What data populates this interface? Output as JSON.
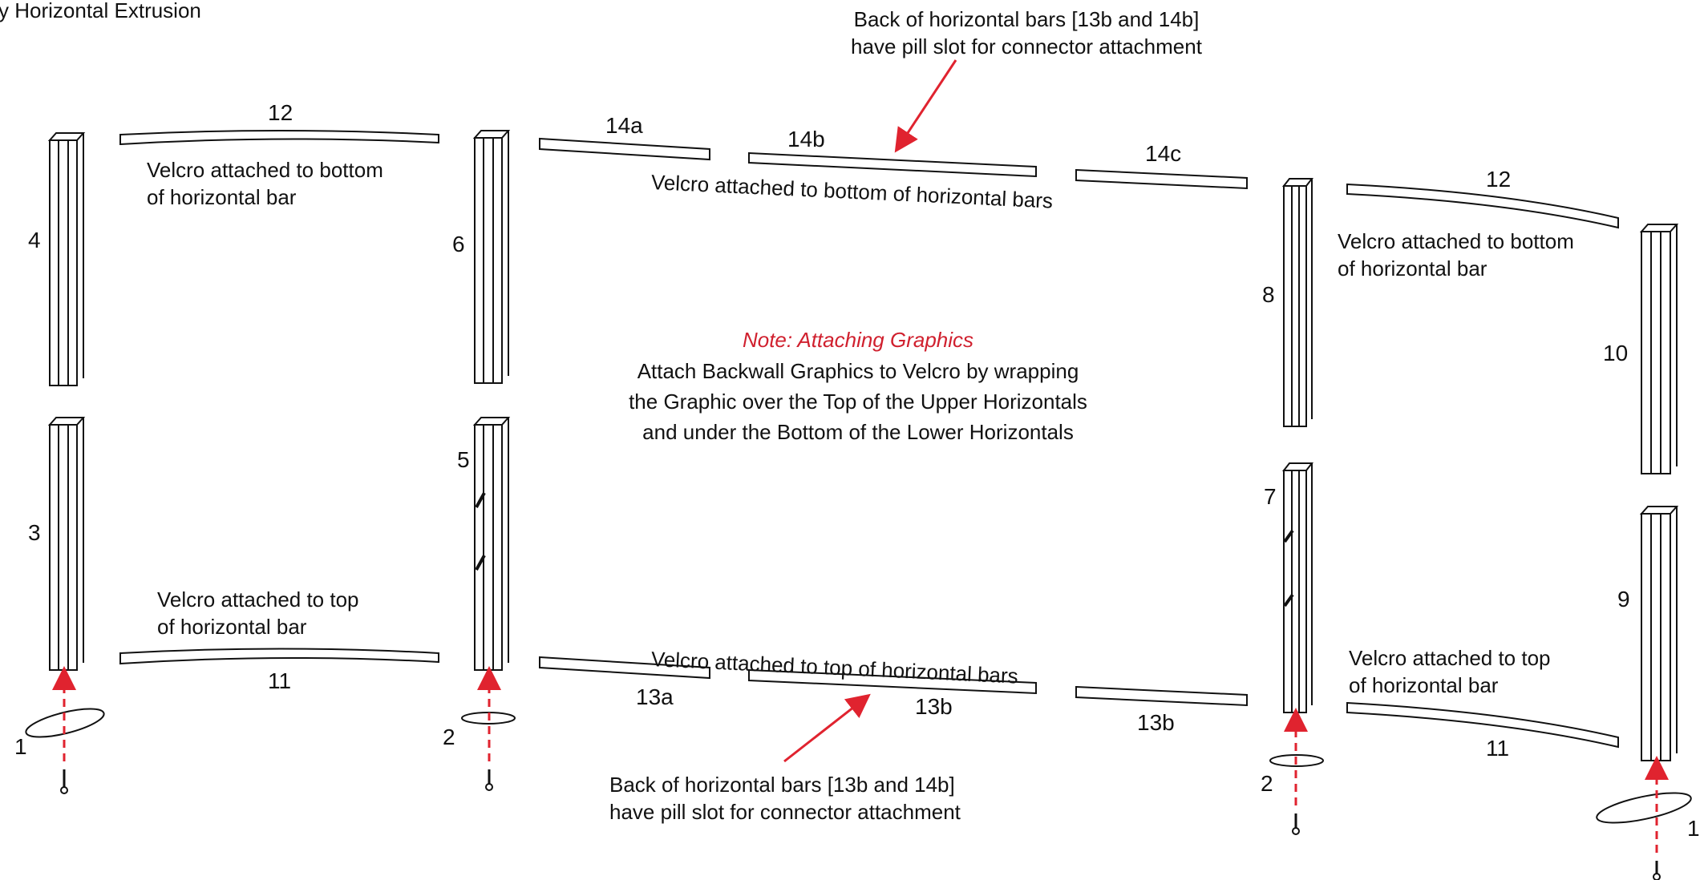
{
  "header": {
    "title": "y Horizontal Extrusion"
  },
  "callouts": {
    "top_pill_line1": "Back of horizontal bars [13b and 14b]",
    "top_pill_line2": "have pill slot for connector attachment",
    "bottom_pill_line1": "Back of horizontal bars [13b and 14b]",
    "bottom_pill_line2": "have pill slot for connector attachment",
    "velcro_bottom_left_1": "Velcro attached to bottom",
    "velcro_bottom_left_2": "of horizontal bar",
    "velcro_bottom_right_1": "Velcro attached to bottom",
    "velcro_bottom_right_2": "of horizontal bar",
    "velcro_top_left_1": "Velcro attached to top",
    "velcro_top_left_2": "of horizontal bar",
    "velcro_top_right_1": "Velcro attached to top",
    "velcro_top_right_2": "of horizontal bar",
    "velcro_bottom_center": "Velcro attached to bottom of horizontal bars",
    "velcro_top_center": "Velcro attached to top of horizontal bars"
  },
  "note": {
    "title": "Note: Attaching Graphics",
    "line1": "Attach Backwall Graphics to Velcro by wrapping",
    "line2": "the Graphic over the Top of the Upper Horizontals",
    "line3": "and under the Bottom of the Lower Horizontals"
  },
  "labels": {
    "post_4": "4",
    "post_3": "3",
    "post_6": "6",
    "post_5": "5",
    "post_8": "8",
    "post_7": "7",
    "post_10": "10",
    "post_9": "9",
    "bar_12_left": "12",
    "bar_12_right": "12",
    "bar_11_left": "11",
    "bar_11_right": "11",
    "bar_14a": "14a",
    "bar_14b": "14b",
    "bar_14c": "14c",
    "bar_13a": "13a",
    "bar_13b_center": "13b",
    "bar_13b_right": "13b",
    "base_1_left": "1",
    "base_2_left": "2",
    "base_2_right": "2",
    "base_1_right": "1"
  },
  "colors": {
    "accent_red": "#e0232f",
    "line": "#111111"
  }
}
